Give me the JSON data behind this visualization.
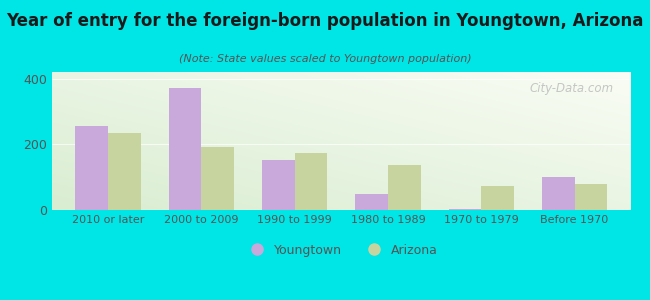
{
  "title": "Year of entry for the foreign-born population in Youngtown, Arizona",
  "subtitle": "(Note: State values scaled to Youngtown population)",
  "categories": [
    "2010 or later",
    "2000 to 2009",
    "1990 to 1999",
    "1980 to 1989",
    "1970 to 1979",
    "Before 1970"
  ],
  "youngtown_values": [
    255,
    370,
    152,
    48,
    2,
    100
  ],
  "arizona_values": [
    235,
    193,
    173,
    138,
    73,
    78
  ],
  "youngtown_color": "#c9a8dc",
  "arizona_color": "#c8d4a0",
  "background_color": "#00e5e5",
  "ylim": [
    0,
    420
  ],
  "yticks": [
    0,
    200,
    400
  ],
  "bar_width": 0.35,
  "watermark": "City-Data.com",
  "legend_youngtown": "Youngtown",
  "legend_arizona": "Arizona",
  "title_fontsize": 12,
  "subtitle_fontsize": 8
}
